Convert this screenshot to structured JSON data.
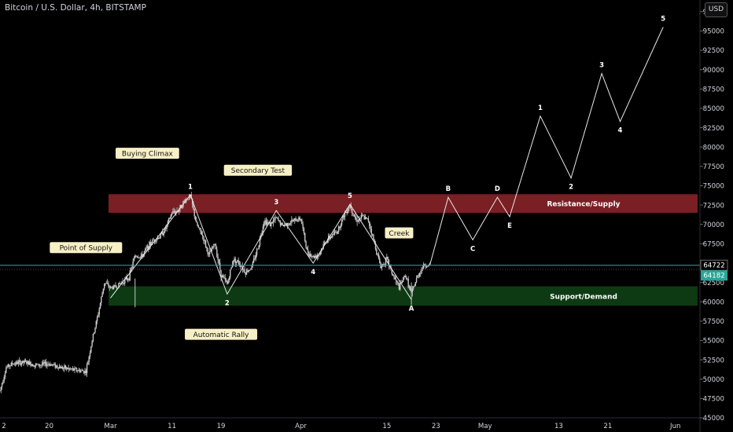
{
  "header": {
    "title": "Bitcoin / U.S. Dollar, 4h, BITSTAMP",
    "currency_button": "USD"
  },
  "colors": {
    "background": "#000000",
    "candle": "#c8c8c8",
    "resistance_zone": "#7a1f24",
    "support_zone": "#0d3a12",
    "last_price": "#26a69a",
    "current_price_line": "#2aa8a0",
    "label_bg": "#f7f0c6"
  },
  "chart_data": {
    "type": "line",
    "y_axis": {
      "range": [
        45000,
        99000
      ],
      "ticks": [
        97500,
        95000,
        92500,
        90000,
        87500,
        85000,
        82500,
        80000,
        77500,
        75000,
        72500,
        70000,
        67500,
        65000,
        62500,
        60000,
        57500,
        55000,
        52500,
        50000,
        47500,
        45000
      ],
      "tick_labels": [
        "97500",
        "95000",
        "92500",
        "90000",
        "87500",
        "85000",
        "82500",
        "80000",
        "77500",
        "75000",
        "72500",
        "70000",
        "67500",
        "65000",
        "62500",
        "60000",
        "57500",
        "55000",
        "52500",
        "50000",
        "47500",
        "45000"
      ]
    },
    "x_axis": {
      "start": "2024-02-12",
      "end": "2024-06-05",
      "ticks": [
        {
          "date": "2024-02-12",
          "label": "2"
        },
        {
          "date": "2024-02-20",
          "label": "20"
        },
        {
          "date": "2024-03-01",
          "label": "Mar"
        },
        {
          "date": "2024-03-11",
          "label": "11"
        },
        {
          "date": "2024-03-19",
          "label": "19"
        },
        {
          "date": "2024-04-01",
          "label": "Apr"
        },
        {
          "date": "2024-04-15",
          "label": "15"
        },
        {
          "date": "2024-04-23",
          "label": "23"
        },
        {
          "date": "2024-05-01",
          "label": "May"
        },
        {
          "date": "2024-05-13",
          "label": "13"
        },
        {
          "date": "2024-05-21",
          "label": "21"
        },
        {
          "date": "2024-06-01",
          "label": "Jun"
        }
      ]
    },
    "price_series": [
      [
        "2024-02-12",
        48500
      ],
      [
        "2024-02-13",
        51500
      ],
      [
        "2024-02-14",
        52000
      ],
      [
        "2024-02-16",
        52200
      ],
      [
        "2024-02-18",
        51800
      ],
      [
        "2024-02-20",
        52000
      ],
      [
        "2024-02-22",
        51500
      ],
      [
        "2024-02-24",
        51200
      ],
      [
        "2024-02-26",
        51000
      ],
      [
        "2024-02-27",
        55000
      ],
      [
        "2024-02-28",
        58500
      ],
      [
        "2024-02-29",
        62500
      ],
      [
        "2024-03-01",
        61800
      ],
      [
        "2024-03-02",
        62000
      ],
      [
        "2024-03-03",
        62600
      ],
      [
        "2024-03-04",
        63200
      ],
      [
        "2024-03-05",
        66000
      ],
      [
        "2024-03-06",
        65800
      ],
      [
        "2024-03-07",
        67000
      ],
      [
        "2024-03-08",
        68000
      ],
      [
        "2024-03-09",
        68400
      ],
      [
        "2024-03-10",
        69500
      ],
      [
        "2024-03-11",
        71500
      ],
      [
        "2024-03-12",
        71800
      ],
      [
        "2024-03-13",
        73000
      ],
      [
        "2024-03-14",
        73700
      ],
      [
        "2024-03-15",
        70000
      ],
      [
        "2024-03-16",
        68500
      ],
      [
        "2024-03-17",
        66000
      ],
      [
        "2024-03-18",
        67500
      ],
      [
        "2024-03-19",
        63500
      ],
      [
        "2024-03-20",
        62300
      ],
      [
        "2024-03-21",
        65500
      ],
      [
        "2024-03-22",
        65000
      ],
      [
        "2024-03-23",
        63800
      ],
      [
        "2024-03-24",
        64500
      ],
      [
        "2024-03-25",
        67000
      ],
      [
        "2024-03-26",
        70500
      ],
      [
        "2024-03-27",
        70000
      ],
      [
        "2024-03-28",
        70800
      ],
      [
        "2024-03-29",
        69800
      ],
      [
        "2024-03-30",
        70200
      ],
      [
        "2024-03-31",
        70500
      ],
      [
        "2024-04-01",
        70800
      ],
      [
        "2024-04-02",
        66500
      ],
      [
        "2024-04-03",
        65800
      ],
      [
        "2024-04-04",
        66200
      ],
      [
        "2024-04-05",
        67800
      ],
      [
        "2024-04-06",
        68500
      ],
      [
        "2024-04-07",
        69200
      ],
      [
        "2024-04-08",
        71200
      ],
      [
        "2024-04-09",
        72500
      ],
      [
        "2024-04-10",
        70500
      ],
      [
        "2024-04-11",
        71000
      ],
      [
        "2024-04-12",
        70500
      ],
      [
        "2024-04-13",
        67500
      ],
      [
        "2024-04-14",
        64500
      ],
      [
        "2024-04-15",
        65500
      ],
      [
        "2024-04-16",
        63400
      ],
      [
        "2024-04-17",
        61800
      ],
      [
        "2024-04-18",
        63500
      ],
      [
        "2024-04-19",
        61000
      ],
      [
        "2024-04-20",
        63300
      ],
      [
        "2024-04-21",
        64700
      ],
      [
        "2024-04-22",
        64722
      ]
    ],
    "projection_path": [
      {
        "date": "2024-04-22",
        "value": 64722,
        "label": ""
      },
      {
        "date": "2024-04-25",
        "value": 73500,
        "label": "B"
      },
      {
        "date": "2024-04-29",
        "value": 68000,
        "label": "C"
      },
      {
        "date": "2024-05-03",
        "value": 73500,
        "label": "D"
      },
      {
        "date": "2024-05-05",
        "value": 71000,
        "label": "E"
      },
      {
        "date": "2024-05-10",
        "value": 84000,
        "label": "1"
      },
      {
        "date": "2024-05-15",
        "value": 76000,
        "label": "2"
      },
      {
        "date": "2024-05-20",
        "value": 89500,
        "label": "3"
      },
      {
        "date": "2024-05-23",
        "value": 83300,
        "label": "4"
      },
      {
        "date": "2024-05-30",
        "value": 95500,
        "label": "5"
      }
    ],
    "structure_path": [
      {
        "date": "2024-03-01",
        "value": 60500,
        "label": ""
      },
      {
        "date": "2024-03-14",
        "value": 73800,
        "label": "1"
      },
      {
        "date": "2024-03-20",
        "value": 61000,
        "label": "2"
      },
      {
        "date": "2024-03-28",
        "value": 71800,
        "label": "3"
      },
      {
        "date": "2024-04-03",
        "value": 65000,
        "label": "4"
      },
      {
        "date": "2024-04-09",
        "value": 72600,
        "label": "5"
      },
      {
        "date": "2024-04-19",
        "value": 60300,
        "label": "A"
      }
    ],
    "zones": [
      {
        "name": "Resistance/Supply",
        "from": 71500,
        "to": 73900,
        "color": "#7a1f24"
      },
      {
        "name": "Support/Demand",
        "from": 59500,
        "to": 62000,
        "color": "#0d3a12"
      }
    ],
    "annotations": [
      {
        "text": "Point of Supply",
        "date": "2024-02-26",
        "value": 67000
      },
      {
        "text": "Buying Climax",
        "date": "2024-03-07",
        "value": 79200
      },
      {
        "text": "Secondary Test",
        "date": "2024-03-25",
        "value": 77000
      },
      {
        "text": "Automatic Rally",
        "date": "2024-03-19",
        "value": 55800
      },
      {
        "text": "Creek",
        "date": "2024-04-17",
        "value": 68900
      }
    ],
    "price_labels": [
      {
        "value": 64722,
        "text": "64722",
        "style": "current"
      },
      {
        "value": 64182,
        "text": "64182",
        "style": "last"
      }
    ]
  }
}
